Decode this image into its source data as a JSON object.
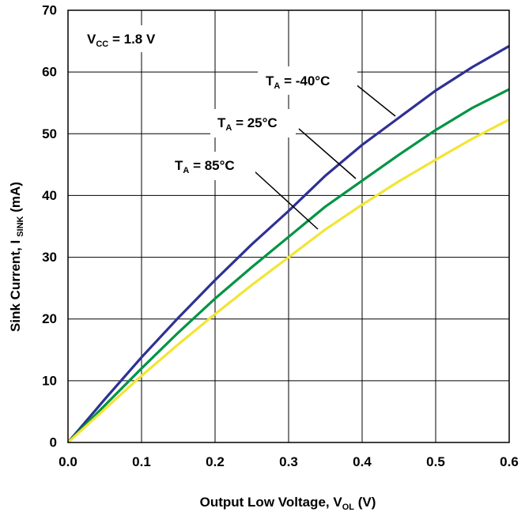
{
  "chart_data": {
    "type": "line",
    "title": "",
    "xlabel": {
      "main": "Output Low Voltage, V",
      "sub": "OL",
      "unit": " (V)"
    },
    "ylabel": {
      "main": "Sink Current, I",
      "sub": "SINK",
      "unit": " (mA)"
    },
    "xlim": [
      0,
      0.6
    ],
    "ylim": [
      0,
      70
    ],
    "x_ticks": [
      "0.0",
      "0.1",
      "0.2",
      "0.3",
      "0.4",
      "0.5",
      "0.6"
    ],
    "y_ticks": [
      "0",
      "10",
      "20",
      "30",
      "40",
      "50",
      "60",
      "70"
    ],
    "grid": true,
    "condition_label": {
      "main": "V",
      "sub": "CC",
      "rest": " = 1.8 V"
    },
    "series": [
      {
        "name": "T_A = -40°C",
        "label": {
          "main": "T",
          "sub": "A",
          "rest": " = -40°C"
        },
        "color": "#2e3192",
        "x": [
          0,
          0.05,
          0.1,
          0.15,
          0.2,
          0.25,
          0.3,
          0.35,
          0.4,
          0.45,
          0.5,
          0.55,
          0.6
        ],
        "y": [
          0,
          7,
          13.8,
          20.2,
          26.3,
          32.1,
          37.5,
          43.2,
          48.2,
          52.6,
          57,
          60.8,
          64.2
        ]
      },
      {
        "name": "T_A = 25°C",
        "label": {
          "main": "T",
          "sub": "A",
          "rest": " = 25°C"
        },
        "color": "#009444",
        "x": [
          0,
          0.05,
          0.1,
          0.15,
          0.2,
          0.25,
          0.3,
          0.35,
          0.4,
          0.45,
          0.5,
          0.55,
          0.6
        ],
        "y": [
          0,
          6,
          12,
          17.8,
          23.3,
          28.4,
          33.3,
          38.2,
          42.4,
          46.6,
          50.6,
          54.2,
          57.2
        ]
      },
      {
        "name": "T_A = 85°C",
        "label": {
          "main": "T",
          "sub": "A",
          "rest": " = 85°C"
        },
        "color": "#f2e535",
        "x": [
          0,
          0.05,
          0.1,
          0.15,
          0.2,
          0.25,
          0.3,
          0.35,
          0.4,
          0.45,
          0.5,
          0.55,
          0.6
        ],
        "y": [
          0,
          5.4,
          10.8,
          15.9,
          20.8,
          25.5,
          30,
          34.5,
          38.5,
          42.3,
          45.8,
          49.2,
          52.3
        ]
      }
    ]
  }
}
